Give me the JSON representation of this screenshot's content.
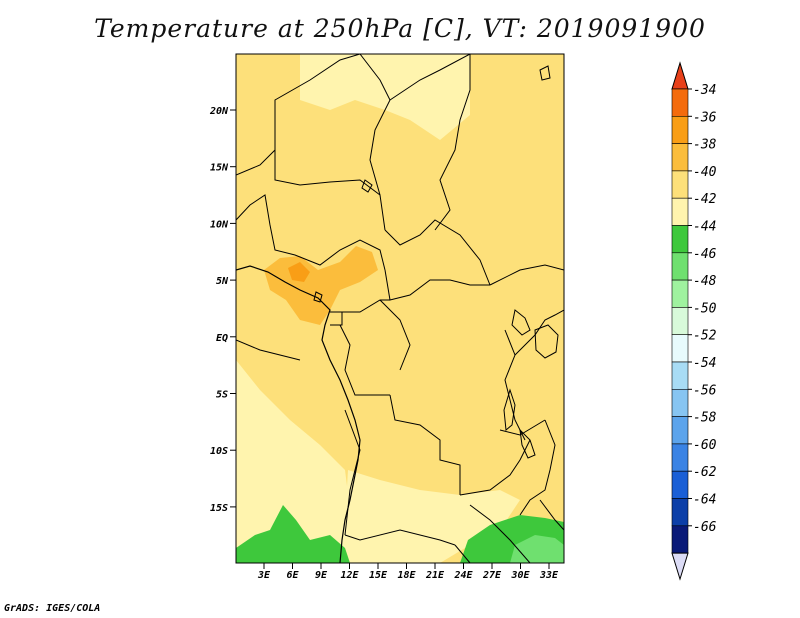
{
  "title": "Temperature at 250hPa [C], VT: 2019091900",
  "credit": "GrADS: IGES/COLA",
  "map": {
    "lat_labels": [
      "20N",
      "15N",
      "10N",
      "5N",
      "EQ",
      "5S",
      "10S",
      "15S"
    ],
    "lon_labels": [
      "3E",
      "6E",
      "9E",
      "12E",
      "15E",
      "18E",
      "21E",
      "24E",
      "27E",
      "30E",
      "33E"
    ]
  },
  "colorbar": {
    "labels": [
      "-34",
      "-36",
      "-38",
      "-40",
      "-42",
      "-44",
      "-46",
      "-48",
      "-50",
      "-52",
      "-54",
      "-56",
      "-58",
      "-60",
      "-62",
      "-64",
      "-66"
    ],
    "colors": [
      "#e8401a",
      "#f46b0c",
      "#f99e16",
      "#fbbd3c",
      "#fde07a",
      "#fff4ae",
      "#3ec83c",
      "#6fe06f",
      "#9ff29f",
      "#d8fada",
      "#e8fbfd",
      "#a8dcf5",
      "#87c5f2",
      "#5ca4ec",
      "#3a83e4",
      "#1a5fd6",
      "#0c3fa8",
      "#0a1a78",
      "#dcdcf6"
    ]
  },
  "field_colors": {
    "m40": "#fde07a",
    "m42": "#fff4ae",
    "m38": "#fbbd3c",
    "m36": "#f99e16",
    "m44": "#3ec83c",
    "m46": "#6fe06f"
  }
}
